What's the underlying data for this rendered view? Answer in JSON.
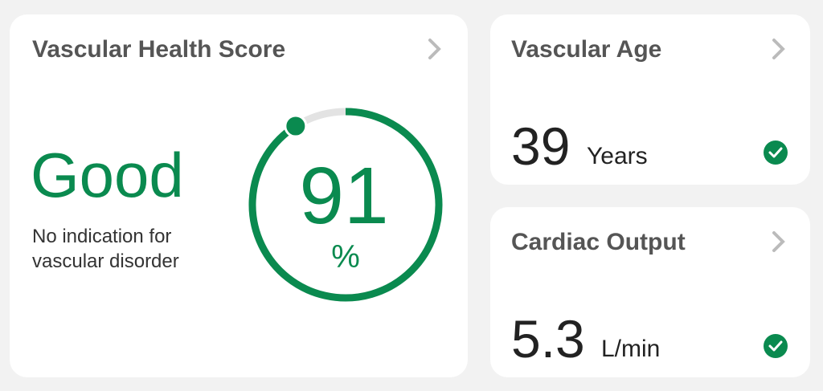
{
  "cards": [
    {
      "title": "Vascular Health Score",
      "status": "Good",
      "description": [
        "No indication for",
        "vascular disorder"
      ],
      "score": {
        "value": 91,
        "unit": "%"
      }
    },
    {
      "title": "Vascular Age",
      "value": 39,
      "unit": "Years"
    },
    {
      "title": "Cardiac Output",
      "value": 5.3,
      "unit": "L/min"
    }
  ]
}
